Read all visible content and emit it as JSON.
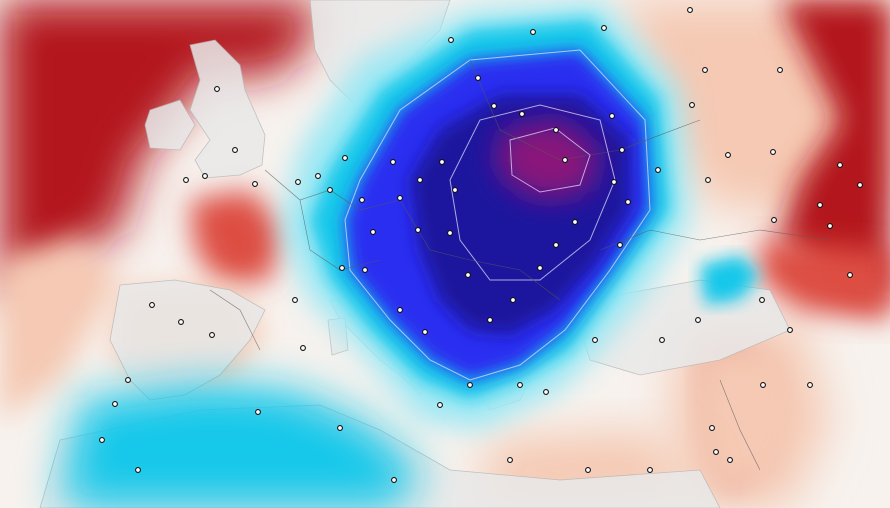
{
  "map": {
    "type": "temperature-anomaly",
    "region": "Europe",
    "colors": {
      "warm_strong": "#b3141e",
      "warm_mid": "#dd4d43",
      "warm_light": "#f5c9b3",
      "neutral": "#f7f2ee",
      "cool_light": "#9be8f4",
      "cool_cyan": "#19c8ea",
      "cool_blue": "#2a2ef0",
      "cold_deep": "#1d149e",
      "cold_core": "#8a137a",
      "land_relief": "#e6e6e6"
    },
    "icons": [
      "city-marker-icon"
    ]
  }
}
